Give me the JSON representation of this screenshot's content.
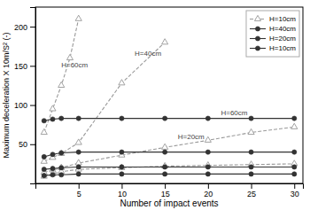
{
  "chart_data": {
    "type": "line",
    "xlabel": "Number of impact events",
    "ylabel": "Maximum deceleration X 10m/S² (-)",
    "xlim": [
      0,
      31
    ],
    "ylim": [
      0,
      225
    ],
    "xticks": [
      5,
      10,
      15,
      20,
      25,
      30
    ],
    "yticks": [
      50,
      100,
      150,
      200
    ],
    "grid": false,
    "legend": "upper right",
    "series": [
      {
        "color": "#999999",
        "marker": "triangle-open",
        "line_style": "dashed",
        "x": [
          1,
          2,
          3,
          4,
          5
        ],
        "values": [
          65,
          95,
          125,
          160,
          210
        ]
      },
      {
        "color": "#999999",
        "marker": "triangle-open",
        "line_style": "dashed",
        "x": [
          1,
          2,
          3,
          5,
          10,
          15
        ],
        "values": [
          28,
          33,
          38,
          52,
          128,
          180
        ]
      },
      {
        "color": "#999999",
        "marker": "triangle-open",
        "line_style": "dashed",
        "x": [
          1,
          2,
          3,
          5,
          10,
          15,
          20,
          25,
          30
        ],
        "values": [
          14,
          17,
          20,
          26,
          36,
          46,
          55,
          65,
          72
        ]
      },
      {
        "name": "H=10cm",
        "color": "#999999",
        "marker": "triangle-open",
        "line_style": "dashed",
        "x": [
          1,
          2,
          3,
          5,
          10,
          15,
          20,
          25,
          30
        ],
        "values": [
          9,
          12,
          15,
          18,
          20,
          22,
          23,
          24,
          25
        ]
      },
      {
        "color": "#333333",
        "marker": "circle",
        "line_style": "solid",
        "x": [
          1,
          2,
          3,
          5,
          10,
          15,
          20,
          25,
          30
        ],
        "values": [
          80,
          82,
          83,
          83,
          83,
          83,
          83,
          83,
          83
        ]
      },
      {
        "name": "H=40cm",
        "color": "#333333",
        "marker": "circle",
        "line_style": "solid",
        "x": [
          1,
          2,
          3,
          5,
          10,
          15,
          20,
          25,
          30
        ],
        "values": [
          34,
          37,
          39,
          40,
          40,
          40,
          40,
          40,
          40
        ]
      },
      {
        "name": "H=20cm",
        "color": "#333333",
        "marker": "circle",
        "line_style": "solid",
        "x": [
          1,
          2,
          3,
          5,
          10,
          15,
          20,
          25,
          30
        ],
        "values": [
          18,
          19,
          20,
          21,
          21,
          21,
          21,
          21,
          21
        ]
      },
      {
        "name": "H=10cm",
        "color": "#333333",
        "marker": "circle",
        "line_style": "solid",
        "x": [
          1,
          2,
          3,
          5,
          10,
          15,
          20,
          25,
          30
        ],
        "values": [
          10,
          11,
          11,
          12,
          12,
          12,
          12,
          12,
          12
        ]
      }
    ],
    "annotations": [
      {
        "text": "H=60cm",
        "x": 3.0,
        "y": 148
      },
      {
        "text": "H=40cm",
        "x": 11.5,
        "y": 163
      },
      {
        "text": "H=20cm",
        "x": 16.5,
        "y": 57
      },
      {
        "text": "H=60cm",
        "x": 21.5,
        "y": 87
      }
    ]
  }
}
